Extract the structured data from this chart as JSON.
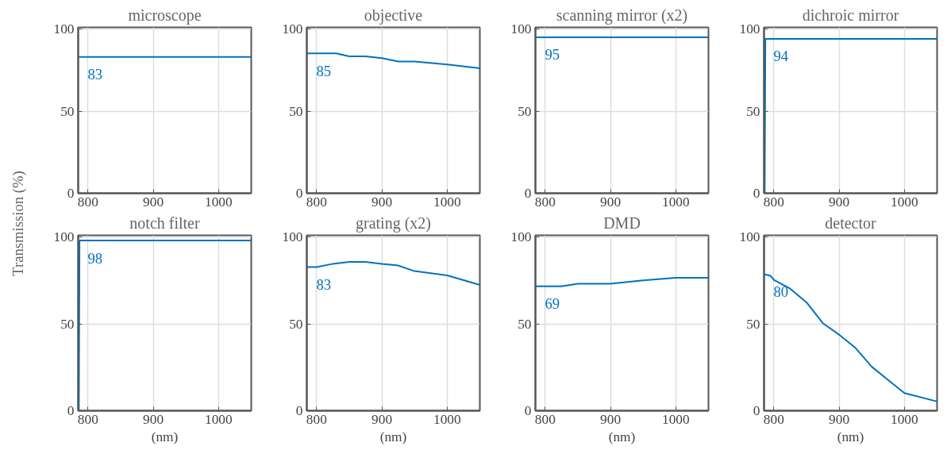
{
  "chart_data": [
    {
      "type": "line",
      "title": "microscope",
      "ylabel": "Transmission (%)",
      "x": [
        785,
        1050
      ],
      "values": [
        83,
        83
      ],
      "color": "#0072bd",
      "xlim": [
        785,
        1050
      ],
      "ylim": [
        0,
        101
      ],
      "xticks": [
        800,
        900,
        1000
      ],
      "yticks": [
        0,
        50,
        100
      ],
      "grid": true,
      "annotations": [
        "83"
      ]
    },
    {
      "type": "line",
      "title": "objective",
      "x": [
        785,
        830,
        850,
        875,
        900,
        925,
        950,
        1000,
        1050
      ],
      "values": [
        85.2,
        85.2,
        83.4,
        83.4,
        82.3,
        80.2,
        80.2,
        78.4,
        76.1
      ],
      "color": "#0072bd",
      "xlim": [
        785,
        1050
      ],
      "ylim": [
        0,
        101
      ],
      "xticks": [
        800,
        900,
        1000
      ],
      "yticks": [
        0,
        50,
        100
      ],
      "grid": true,
      "annotations": [
        "85"
      ]
    },
    {
      "type": "line",
      "title": "scanning mirror (x2)",
      "x": [
        785,
        1050
      ],
      "values": [
        95,
        95
      ],
      "color": "#0072bd",
      "xlim": [
        785,
        1050
      ],
      "ylim": [
        0,
        101
      ],
      "xticks": [
        800,
        900,
        1000
      ],
      "yticks": [
        0,
        50,
        100
      ],
      "grid": true,
      "annotations": [
        "95"
      ]
    },
    {
      "type": "line",
      "title": "dichroic mirror",
      "x": [
        786,
        787,
        1050
      ],
      "values": [
        0,
        94,
        94
      ],
      "color": "#0072bd",
      "xlim": [
        785,
        1050
      ],
      "ylim": [
        0,
        101
      ],
      "xticks": [
        800,
        900,
        1000
      ],
      "yticks": [
        0,
        50,
        100
      ],
      "grid": true,
      "annotations": [
        "94"
      ]
    },
    {
      "type": "line",
      "title": "notch filter",
      "xlabel": "(nm)",
      "x": [
        786,
        787,
        1050
      ],
      "values": [
        0,
        98,
        98
      ],
      "color": "#0072bd",
      "xlim": [
        785,
        1050
      ],
      "ylim": [
        0,
        101
      ],
      "xticks": [
        800,
        900,
        1000
      ],
      "yticks": [
        0,
        50,
        100
      ],
      "grid": true,
      "annotations": [
        "98"
      ]
    },
    {
      "type": "line",
      "title": "grating (x2)",
      "xlabel": "(nm)",
      "x": [
        785,
        800,
        825,
        850,
        875,
        900,
        925,
        950,
        1000,
        1050
      ],
      "values": [
        82.7,
        82.7,
        84.6,
        85.7,
        85.7,
        84.5,
        83.6,
        80.4,
        77.9,
        72.4
      ],
      "color": "#0072bd",
      "xlim": [
        785,
        1050
      ],
      "ylim": [
        0,
        101
      ],
      "xticks": [
        800,
        900,
        1000
      ],
      "yticks": [
        0,
        50,
        100
      ],
      "grid": true,
      "annotations": [
        "83"
      ]
    },
    {
      "type": "line",
      "title": "DMD",
      "xlabel": "(nm)",
      "x": [
        785,
        825,
        850,
        900,
        950,
        1000,
        1050
      ],
      "values": [
        71.6,
        71.6,
        73.1,
        73.1,
        75.1,
        76.5,
        76.5
      ],
      "color": "#0072bd",
      "xlim": [
        785,
        1050
      ],
      "ylim": [
        0,
        101
      ],
      "xticks": [
        800,
        900,
        1000
      ],
      "yticks": [
        0,
        50,
        100
      ],
      "grid": true,
      "annotations": [
        "69"
      ]
    },
    {
      "type": "line",
      "title": "detector",
      "xlabel": "(nm)",
      "x": [
        785,
        795,
        800,
        825,
        850,
        875,
        900,
        925,
        950,
        975,
        1000,
        1050
      ],
      "values": [
        78.6,
        77.7,
        75.3,
        70.3,
        62.4,
        50.4,
        43.8,
        36.2,
        25.3,
        17.7,
        10.2,
        5.3
      ],
      "color": "#0072bd",
      "xlim": [
        785,
        1050
      ],
      "ylim": [
        0,
        101
      ],
      "xticks": [
        800,
        900,
        1000
      ],
      "yticks": [
        0,
        50,
        100
      ],
      "grid": true,
      "annotations": [
        "80"
      ]
    }
  ]
}
